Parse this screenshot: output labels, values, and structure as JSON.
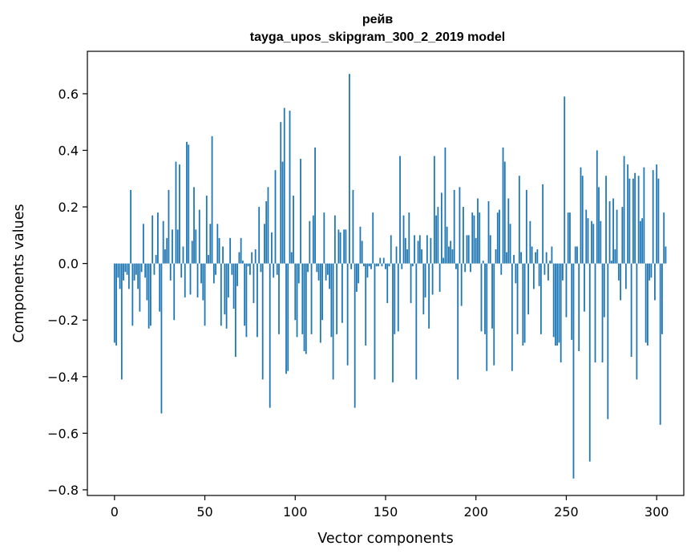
{
  "chart_data": {
    "type": "bar",
    "title": "рейв",
    "subtitle": "tayga_upos_skipgram_300_2_2019 model",
    "xlabel": "Vector components",
    "ylabel": "Components values",
    "xlim": [
      -15,
      315
    ],
    "ylim": [
      -0.82,
      0.75
    ],
    "xticks": [
      0,
      50,
      100,
      150,
      200,
      250,
      300
    ],
    "xtick_labels": [
      "0",
      "50",
      "100",
      "150",
      "200",
      "250",
      "300"
    ],
    "yticks": [
      -0.8,
      -0.6,
      -0.4,
      -0.2,
      0.0,
      0.2,
      0.4,
      0.6
    ],
    "ytick_labels": [
      "−0.8",
      "−0.6",
      "−0.4",
      "−0.2",
      "0.0",
      "0.2",
      "0.4",
      "0.6"
    ],
    "grid": false,
    "bar_color": "#1f77b4",
    "values": [
      -0.28,
      -0.29,
      -0.05,
      -0.09,
      -0.41,
      -0.06,
      -0.03,
      -0.04,
      -0.09,
      0.26,
      -0.22,
      -0.06,
      -0.04,
      -0.09,
      -0.17,
      -0.03,
      0.14,
      -0.05,
      -0.13,
      -0.23,
      -0.22,
      0.17,
      -0.04,
      0.03,
      0.18,
      -0.17,
      -0.53,
      0.15,
      0.05,
      0.09,
      0.26,
      -0.06,
      0.12,
      -0.2,
      0.36,
      0.12,
      0.35,
      -0.05,
      0.06,
      -0.12,
      0.43,
      0.42,
      -0.11,
      0.08,
      0.27,
      0.12,
      -0.12,
      0.19,
      -0.07,
      -0.13,
      -0.22,
      0.24,
      0.03,
      0.14,
      0.45,
      -0.07,
      -0.04,
      0.14,
      0.09,
      -0.22,
      0.06,
      -0.18,
      -0.23,
      -0.12,
      0.09,
      -0.04,
      -0.16,
      -0.33,
      -0.08,
      0.04,
      0.09,
      0.01,
      -0.22,
      -0.26,
      -0.01,
      -0.04,
      0.04,
      -0.14,
      0.05,
      -0.26,
      0.2,
      -0.03,
      -0.41,
      0.14,
      0.22,
      0.27,
      -0.51,
      0.11,
      -0.05,
      0.33,
      -0.04,
      -0.25,
      0.5,
      0.36,
      0.55,
      -0.39,
      -0.38,
      0.54,
      0.04,
      0.24,
      -0.2,
      -0.26,
      -0.07,
      0.37,
      -0.25,
      -0.31,
      -0.32,
      -0.03,
      0.15,
      -0.25,
      0.17,
      0.41,
      -0.03,
      -0.06,
      -0.28,
      -0.2,
      0.18,
      -0.06,
      -0.04,
      -0.09,
      -0.26,
      -0.41,
      0.17,
      -0.25,
      0.12,
      0.11,
      -0.21,
      0.12,
      0.12,
      -0.36,
      0.67,
      -0.02,
      0.26,
      -0.51,
      -0.1,
      -0.07,
      0.13,
      0.08,
      -0.01,
      -0.29,
      -0.05,
      -0.01,
      -0.02,
      0.18,
      -0.41,
      -0.01,
      -0.01,
      0.02,
      -0.01,
      0.02,
      -0.02,
      -0.14,
      -0.01,
      0.1,
      -0.42,
      -0.25,
      0.06,
      -0.24,
      0.38,
      -0.02,
      0.17,
      0.09,
      0.05,
      0.18,
      -0.14,
      -0.01,
      0.1,
      -0.41,
      0.08,
      0.1,
      0.05,
      -0.18,
      -0.12,
      0.1,
      -0.23,
      0.09,
      -0.11,
      0.38,
      0.17,
      0.2,
      -0.1,
      0.25,
      0.02,
      0.41,
      0.13,
      0.06,
      0.08,
      0.05,
      0.26,
      -0.02,
      -0.41,
      0.27,
      -0.15,
      0.2,
      -0.03,
      0.1,
      0.1,
      -0.03,
      0.18,
      0.17,
      0.09,
      0.23,
      0.18,
      -0.24,
      0.01,
      -0.25,
      -0.38,
      0.22,
      0.1,
      -0.23,
      -0.36,
      0.05,
      0.18,
      0.19,
      -0.04,
      0.41,
      0.36,
      0.04,
      0.23,
      0.14,
      -0.38,
      0.03,
      -0.07,
      -0.25,
      0.31,
      0.04,
      -0.29,
      -0.28,
      0.26,
      -0.18,
      0.15,
      0.06,
      -0.09,
      0.04,
      0.05,
      -0.08,
      -0.25,
      0.28,
      -0.04,
      0.04,
      -0.06,
      0.01,
      0.06,
      -0.26,
      -0.29,
      -0.29,
      -0.28,
      -0.35,
      -0.06,
      0.59,
      -0.19,
      0.18,
      0.18,
      -0.27,
      -0.76,
      0.06,
      0.06,
      -0.31,
      0.34,
      0.31,
      -0.17,
      0.19,
      0.16,
      -0.7,
      0.15,
      0.14,
      -0.35,
      0.4,
      0.27,
      0.15,
      -0.35,
      -0.19,
      0.31,
      -0.55,
      0.22,
      0.01,
      0.23,
      0.05,
      0.19,
      -0.06,
      -0.13,
      0.2,
      0.38,
      -0.09,
      0.35,
      0.3,
      -0.33,
      0.3,
      0.32,
      -0.41,
      0.31,
      0.15,
      0.16,
      0.34,
      -0.28,
      -0.29,
      -0.06,
      -0.05,
      0.33,
      -0.13,
      0.35,
      0.3,
      -0.57,
      -0.25,
      0.18,
      0.06
    ]
  }
}
